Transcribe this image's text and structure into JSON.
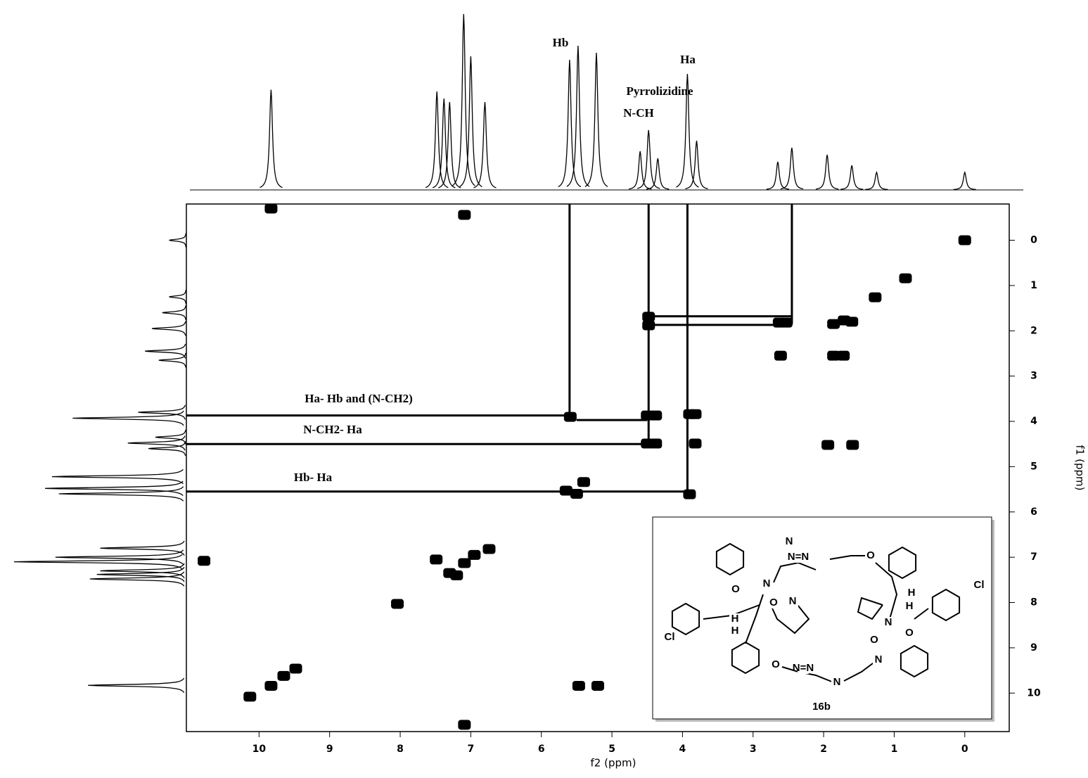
{
  "chart_data": {
    "type": "cosy",
    "xlabel": "f2 (ppm)",
    "ylabel": "f1 (ppm)",
    "xlim": [
      11.03,
      -0.63
    ],
    "ylim": [
      -0.8,
      10.85
    ],
    "xticks": [
      10,
      9,
      8,
      7,
      6,
      5,
      4,
      3,
      2,
      1,
      0
    ],
    "yticks": [
      0,
      1,
      2,
      3,
      4,
      5,
      6,
      7,
      8,
      9,
      10
    ],
    "color": "#000000",
    "projection": {
      "ppm": [
        9.83,
        7.48,
        7.38,
        7.3,
        7.1,
        7.0,
        6.8,
        5.6,
        5.48,
        5.22,
        4.6,
        4.48,
        4.35,
        3.93,
        3.8,
        2.65,
        2.45,
        1.95,
        1.6,
        1.25,
        0.0
      ],
      "intensity": [
        57,
        56,
        52,
        50,
        100,
        76,
        50,
        74,
        82,
        78,
        22,
        34,
        18,
        66,
        28,
        16,
        24,
        20,
        14,
        10,
        10
      ]
    },
    "x": [
      0.0,
      0.84,
      1.27,
      1.71,
      1.86,
      1.6,
      2.61,
      1.86,
      1.72,
      2.53,
      2.63,
      4.48,
      4.48,
      4.5,
      4.38,
      3.82,
      3.9,
      4.5,
      4.38,
      3.82,
      5.59,
      5.4,
      5.65,
      5.5,
      3.9,
      1.94,
      1.59,
      7.09,
      7.49,
      6.74,
      7.3,
      6.95,
      7.2,
      9.83,
      10.13,
      9.48,
      9.65,
      5.47,
      5.2,
      10.78,
      8.04,
      7.09,
      7.09,
      9.83
    ],
    "y": [
      0.0,
      0.84,
      1.26,
      1.77,
      1.85,
      1.8,
      2.55,
      2.55,
      2.55,
      1.82,
      1.82,
      1.69,
      1.88,
      3.87,
      3.87,
      3.84,
      3.84,
      4.49,
      4.49,
      4.49,
      3.9,
      5.34,
      5.53,
      5.6,
      5.61,
      4.52,
      4.52,
      7.13,
      7.05,
      6.82,
      7.35,
      6.95,
      7.4,
      9.84,
      10.08,
      9.46,
      9.62,
      9.84,
      9.84,
      7.08,
      8.03,
      10.7,
      -0.56,
      -0.7
    ],
    "connectors": [
      {
        "f2": [
          5.6,
          5.6
        ],
        "f1": [
          -0.8,
          3.9
        ]
      },
      {
        "f2": [
          4.48,
          4.48
        ],
        "f1": [
          -0.8,
          4.5
        ]
      },
      {
        "f2": [
          3.93,
          3.93
        ],
        "f1": [
          -0.8,
          5.55
        ]
      },
      {
        "f2": [
          2.45,
          2.45
        ],
        "f1": [
          -0.8,
          1.85
        ]
      },
      {
        "f2": [
          11.03,
          5.6
        ],
        "f1": [
          3.87,
          3.87
        ]
      },
      {
        "f2": [
          5.5,
          4.5
        ],
        "f1": [
          3.97,
          3.97
        ]
      },
      {
        "f2": [
          11.03,
          4.48
        ],
        "f1": [
          4.5,
          4.5
        ]
      },
      {
        "f2": [
          11.03,
          3.93
        ],
        "f1": [
          5.55,
          5.55
        ]
      },
      {
        "f2": [
          4.48,
          2.45
        ],
        "f1": [
          1.68,
          1.68
        ]
      },
      {
        "f2": [
          4.48,
          2.45
        ],
        "f1": [
          1.87,
          1.87
        ]
      }
    ],
    "annotations": [
      "Hb",
      "Ha",
      "Pyrrolizidine",
      "N-CH",
      "Ha- Hb and (N-CH2)",
      "N-CH2- Ha",
      "Hb- Ha"
    ],
    "structure": {
      "label": "16b",
      "atoms": [
        "N",
        "N=N",
        "O",
        "N",
        "O",
        "O",
        "N",
        "H",
        "H",
        "Cl",
        "O",
        "N",
        "O",
        "N",
        "H",
        "H",
        "Cl",
        "O",
        "N=N",
        "N"
      ]
    }
  }
}
